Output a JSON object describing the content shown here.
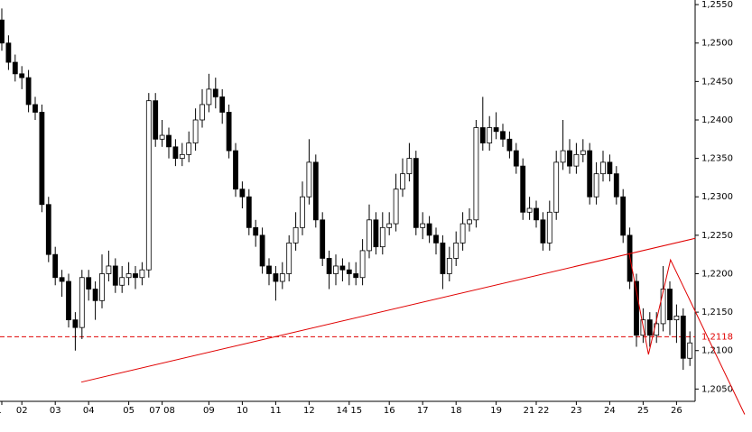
{
  "chart_data": {
    "type": "candlestick",
    "categories": [
      "1",
      null,
      null,
      "02",
      null,
      null,
      null,
      null,
      "03",
      null,
      null,
      null,
      null,
      "04",
      null,
      null,
      null,
      null,
      null,
      "05",
      null,
      null,
      null,
      null,
      "07 08",
      null,
      null,
      null,
      null,
      null,
      null,
      "09",
      null,
      null,
      null,
      null,
      "10",
      null,
      null,
      null,
      null,
      "11",
      null,
      null,
      null,
      null,
      "12",
      null,
      null,
      null,
      null,
      null,
      "14 15",
      null,
      null,
      null,
      null,
      null,
      "16",
      null,
      null,
      null,
      null,
      "17",
      null,
      null,
      null,
      null,
      "18",
      null,
      null,
      null,
      null,
      null,
      "19",
      null,
      null,
      null,
      null,
      null,
      "21 22",
      null,
      null,
      null,
      null,
      null,
      "23",
      null,
      null,
      null,
      null,
      "24",
      null,
      null,
      null,
      null,
      "25",
      null,
      null,
      null,
      null,
      "26",
      null,
      null
    ],
    "open": [
      1.253,
      1.25,
      1.2475,
      1.246,
      1.2455,
      1.242,
      1.241,
      1.229,
      1.2225,
      1.2195,
      1.219,
      1.214,
      1.213,
      1.2195,
      1.218,
      1.2165,
      1.22,
      1.221,
      1.2185,
      1.2195,
      1.22,
      1.2195,
      1.2205,
      1.2425,
      1.2375,
      1.238,
      1.2365,
      1.235,
      1.2355,
      1.237,
      1.24,
      1.242,
      1.244,
      1.243,
      1.241,
      1.236,
      1.231,
      1.23,
      1.226,
      1.225,
      1.221,
      1.22,
      1.219,
      1.22,
      1.224,
      1.226,
      1.23,
      1.2345,
      1.227,
      1.222,
      1.22,
      1.221,
      1.2205,
      1.22,
      1.2195,
      1.223,
      1.227,
      1.2235,
      1.226,
      1.2265,
      1.231,
      1.233,
      1.235,
      1.226,
      1.2265,
      1.225,
      1.224,
      1.22,
      1.222,
      1.224,
      1.2265,
      1.227,
      1.239,
      1.237,
      1.239,
      1.2385,
      1.2375,
      1.236,
      1.234,
      1.228,
      1.2285,
      1.227,
      1.224,
      1.228,
      1.2345,
      1.236,
      1.234,
      1.2355,
      1.236,
      1.23,
      1.233,
      1.2345,
      1.233,
      1.23,
      1.225,
      1.219,
      1.212,
      1.214,
      1.212,
      1.2135,
      1.218,
      1.214,
      1.2145,
      1.209
    ],
    "high": [
      1.2545,
      1.251,
      1.2485,
      1.247,
      1.2465,
      1.243,
      1.242,
      1.23,
      1.2235,
      1.2205,
      1.22,
      1.215,
      1.2205,
      1.2205,
      1.219,
      1.2225,
      1.223,
      1.222,
      1.221,
      1.2215,
      1.221,
      1.2215,
      1.2435,
      1.2435,
      1.24,
      1.239,
      1.2375,
      1.237,
      1.2385,
      1.2415,
      1.244,
      1.246,
      1.2455,
      1.244,
      1.242,
      1.237,
      1.232,
      1.231,
      1.227,
      1.226,
      1.222,
      1.221,
      1.2215,
      1.225,
      1.228,
      1.232,
      1.2375,
      1.2355,
      1.228,
      1.223,
      1.2225,
      1.222,
      1.2215,
      1.2215,
      1.2245,
      1.229,
      1.228,
      1.228,
      1.228,
      1.233,
      1.235,
      1.237,
      1.236,
      1.228,
      1.2275,
      1.226,
      1.225,
      1.2235,
      1.2255,
      1.228,
      1.2285,
      1.24,
      1.243,
      1.2405,
      1.241,
      1.2395,
      1.2385,
      1.237,
      1.235,
      1.23,
      1.2295,
      1.228,
      1.2295,
      1.236,
      1.24,
      1.2375,
      1.237,
      1.2375,
      1.237,
      1.2345,
      1.236,
      1.2355,
      1.234,
      1.231,
      1.226,
      1.22,
      1.2155,
      1.215,
      1.215,
      1.221,
      1.219,
      1.216,
      1.2155,
      1.2125
    ],
    "low": [
      1.249,
      1.2465,
      1.245,
      1.244,
      1.241,
      1.24,
      1.228,
      1.2215,
      1.2185,
      1.217,
      1.213,
      1.21,
      1.2115,
      1.2165,
      1.214,
      1.2155,
      1.219,
      1.2175,
      1.2175,
      1.2185,
      1.218,
      1.2185,
      1.2195,
      1.2365,
      1.2365,
      1.235,
      1.234,
      1.234,
      1.2345,
      1.236,
      1.239,
      1.241,
      1.2415,
      1.2395,
      1.235,
      1.23,
      1.2285,
      1.225,
      1.2235,
      1.22,
      1.2185,
      1.2165,
      1.218,
      1.219,
      1.223,
      1.225,
      1.229,
      1.226,
      1.221,
      1.218,
      1.2185,
      1.219,
      1.2185,
      1.2185,
      1.2185,
      1.222,
      1.2225,
      1.2225,
      1.225,
      1.2255,
      1.23,
      1.232,
      1.225,
      1.2245,
      1.224,
      1.2225,
      1.218,
      1.219,
      1.221,
      1.223,
      1.2255,
      1.226,
      1.236,
      1.236,
      1.2375,
      1.2365,
      1.235,
      1.233,
      1.227,
      1.227,
      1.226,
      1.223,
      1.223,
      1.227,
      1.2335,
      1.233,
      1.233,
      1.2345,
      1.229,
      1.229,
      1.232,
      1.232,
      1.229,
      1.224,
      1.218,
      1.2105,
      1.211,
      1.2105,
      1.211,
      1.2125,
      1.212,
      1.211,
      1.2075,
      1.208
    ],
    "close": [
      1.25,
      1.2475,
      1.246,
      1.2455,
      1.242,
      1.241,
      1.229,
      1.2225,
      1.2195,
      1.219,
      1.214,
      1.213,
      1.2195,
      1.218,
      1.2165,
      1.22,
      1.221,
      1.2185,
      1.2195,
      1.22,
      1.2195,
      1.2205,
      1.2425,
      1.2375,
      1.238,
      1.2365,
      1.235,
      1.2355,
      1.237,
      1.24,
      1.242,
      1.244,
      1.243,
      1.241,
      1.236,
      1.231,
      1.23,
      1.226,
      1.225,
      1.221,
      1.22,
      1.219,
      1.22,
      1.224,
      1.226,
      1.23,
      1.2345,
      1.227,
      1.222,
      1.22,
      1.221,
      1.2205,
      1.22,
      1.2195,
      1.223,
      1.227,
      1.2235,
      1.226,
      1.2265,
      1.231,
      1.233,
      1.235,
      1.226,
      1.2265,
      1.225,
      1.224,
      1.22,
      1.222,
      1.224,
      1.2265,
      1.227,
      1.239,
      1.237,
      1.239,
      1.2385,
      1.2375,
      1.236,
      1.234,
      1.228,
      1.2285,
      1.227,
      1.224,
      1.228,
      1.2345,
      1.236,
      1.234,
      1.2355,
      1.236,
      1.23,
      1.233,
      1.2345,
      1.233,
      1.23,
      1.225,
      1.219,
      1.212,
      1.214,
      1.212,
      1.2135,
      1.218,
      1.214,
      1.2145,
      1.209,
      1.211
    ],
    "up_color": "#ffffff",
    "down_color": "#000000",
    "ylim": [
      1.2034,
      1.2556
    ],
    "yticks": [
      {
        "value": 1.205,
        "label": "1,2050"
      },
      {
        "value": 1.21,
        "label": "1,2100"
      },
      {
        "value": 1.215,
        "label": "1,2150"
      },
      {
        "value": 1.22,
        "label": "1,2200"
      },
      {
        "value": 1.225,
        "label": "1,2250"
      },
      {
        "value": 1.23,
        "label": "1,2300"
      },
      {
        "value": 1.235,
        "label": "1,2350"
      },
      {
        "value": 1.24,
        "label": "1,2400"
      },
      {
        "value": 1.245,
        "label": "1,2450"
      },
      {
        "value": 1.25,
        "label": "1,2500"
      },
      {
        "value": 1.255,
        "label": "1,2550"
      }
    ],
    "hline": {
      "value": 1.2118,
      "label": "1,2118",
      "color": "#e00000"
    },
    "lines": [
      {
        "color": "#e00000",
        "x": [
          11.9,
          103.8
        ],
        "y": [
          1.2059,
          1.2246
        ]
      },
      {
        "color": "#e00000",
        "x": [
          93.9,
          96.8,
          100.1,
          111.2
        ],
        "y": [
          1.2227,
          1.2095,
          1.2218,
          1.2017
        ]
      }
    ]
  }
}
